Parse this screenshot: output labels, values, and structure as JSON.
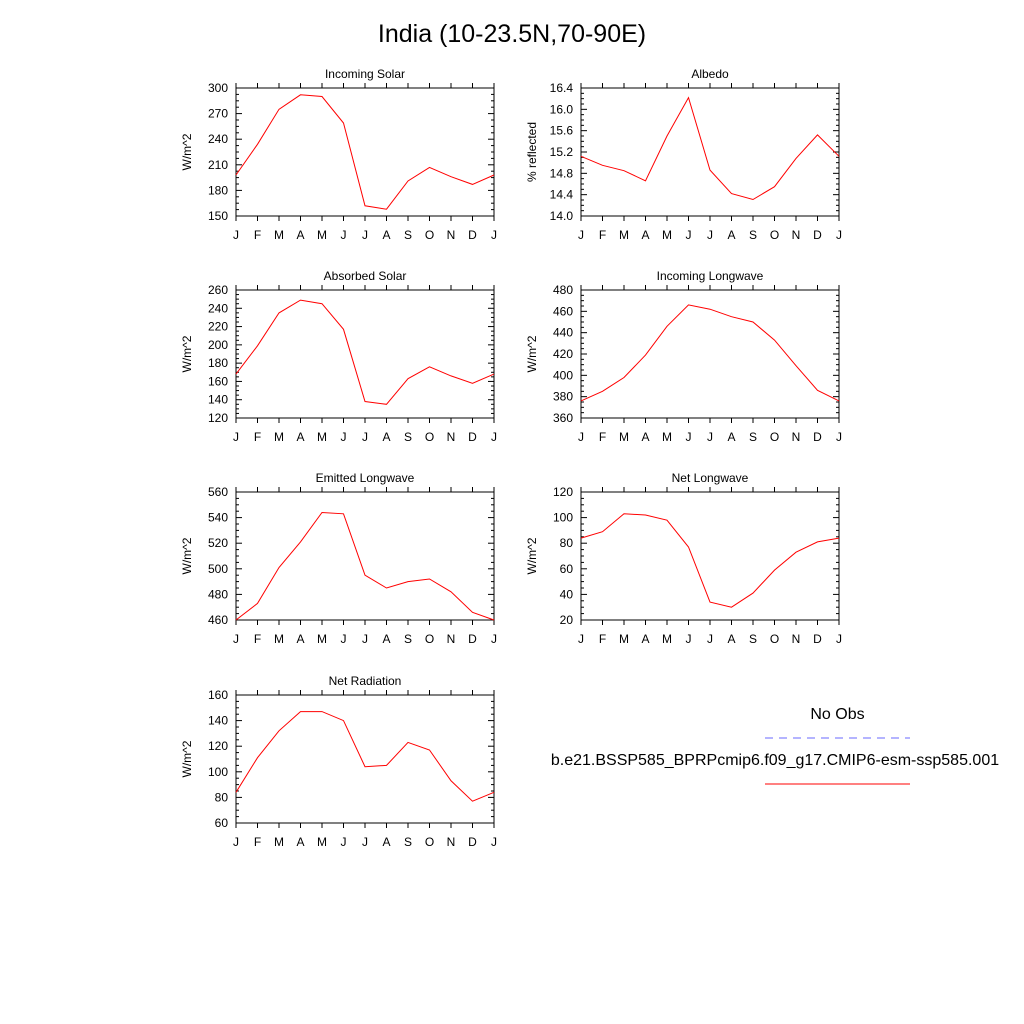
{
  "title": "India (10-23.5N,70-90E)",
  "legend": {
    "obs_label": "No Obs",
    "model_label": "b.e21.BSSP585_BPRPcmip6.f09_g17.CMIP6-esm-ssp585.001",
    "obs_color": "#6a6aff",
    "model_color": "#ff0000"
  },
  "chart_data": [
    {
      "type": "line",
      "title": "Incoming Solar",
      "ylabel": "W/m^2",
      "categories": [
        "J",
        "F",
        "M",
        "A",
        "M",
        "J",
        "J",
        "A",
        "S",
        "O",
        "N",
        "D",
        "J"
      ],
      "ylim": [
        150,
        300
      ],
      "yticks": [
        150,
        180,
        210,
        240,
        270,
        300
      ],
      "ytick_labels": [
        "150",
        "180",
        "210",
        "240",
        "270",
        "300"
      ],
      "series": [
        {
          "values": [
            198,
            234,
            275,
            292,
            290,
            259,
            162,
            158,
            191,
            207,
            196,
            187,
            198
          ],
          "color": "#ff0000"
        }
      ]
    },
    {
      "type": "line",
      "title": "Albedo",
      "ylabel": "% reflected",
      "categories": [
        "J",
        "F",
        "M",
        "A",
        "M",
        "J",
        "J",
        "A",
        "S",
        "O",
        "N",
        "D",
        "J"
      ],
      "ylim": [
        14.0,
        16.4
      ],
      "yticks": [
        14.0,
        14.4,
        14.8,
        15.2,
        15.6,
        16.0,
        16.4
      ],
      "ytick_labels": [
        "14.0",
        "14.4",
        "14.8",
        "15.2",
        "15.6",
        "16.0",
        "16.4"
      ],
      "series": [
        {
          "values": [
            15.12,
            14.95,
            14.85,
            14.66,
            15.5,
            16.22,
            14.86,
            14.42,
            14.31,
            14.55,
            15.08,
            15.52,
            15.12
          ],
          "color": "#ff0000"
        }
      ]
    },
    {
      "type": "line",
      "title": "Absorbed Solar",
      "ylabel": "W/m^2",
      "categories": [
        "J",
        "F",
        "M",
        "A",
        "M",
        "J",
        "J",
        "A",
        "S",
        "O",
        "N",
        "D",
        "J"
      ],
      "ylim": [
        120,
        260
      ],
      "yticks": [
        120,
        140,
        160,
        180,
        200,
        220,
        240,
        260
      ],
      "ytick_labels": [
        "120",
        "140",
        "160",
        "180",
        "200",
        "220",
        "240",
        "260"
      ],
      "series": [
        {
          "values": [
            168,
            199,
            235,
            249,
            245,
            217,
            138,
            135,
            163,
            176,
            166,
            158,
            168
          ],
          "color": "#ff0000"
        }
      ]
    },
    {
      "type": "line",
      "title": "Incoming Longwave",
      "ylabel": "W/m^2",
      "categories": [
        "J",
        "F",
        "M",
        "A",
        "M",
        "J",
        "J",
        "A",
        "S",
        "O",
        "N",
        "D",
        "J"
      ],
      "ylim": [
        360,
        480
      ],
      "yticks": [
        360,
        380,
        400,
        420,
        440,
        460,
        480
      ],
      "ytick_labels": [
        "360",
        "380",
        "400",
        "420",
        "440",
        "460",
        "480"
      ],
      "series": [
        {
          "values": [
            376,
            385,
            398,
            419,
            446,
            466,
            462,
            455,
            450,
            433,
            409,
            386,
            376
          ],
          "color": "#ff0000"
        }
      ]
    },
    {
      "type": "line",
      "title": "Emitted Longwave",
      "ylabel": "W/m^2",
      "categories": [
        "J",
        "F",
        "M",
        "A",
        "M",
        "J",
        "J",
        "A",
        "S",
        "O",
        "N",
        "D",
        "J"
      ],
      "ylim": [
        460,
        560
      ],
      "yticks": [
        460,
        480,
        500,
        520,
        540,
        560
      ],
      "ytick_labels": [
        "460",
        "480",
        "500",
        "520",
        "540",
        "560"
      ],
      "series": [
        {
          "values": [
            460,
            473,
            501,
            521,
            544,
            543,
            495,
            485,
            490,
            492,
            482,
            466,
            460
          ],
          "color": "#ff0000"
        }
      ]
    },
    {
      "type": "line",
      "title": "Net Longwave",
      "ylabel": "W/m^2",
      "categories": [
        "J",
        "F",
        "M",
        "A",
        "M",
        "J",
        "J",
        "A",
        "S",
        "O",
        "N",
        "D",
        "J"
      ],
      "ylim": [
        20,
        120
      ],
      "yticks": [
        20,
        40,
        60,
        80,
        100,
        120
      ],
      "ytick_labels": [
        "20",
        "40",
        "60",
        "80",
        "100",
        "120"
      ],
      "series": [
        {
          "values": [
            84,
            89,
            103,
            102,
            98,
            77,
            34,
            30,
            41,
            59,
            73,
            81,
            84
          ],
          "color": "#ff0000"
        }
      ]
    },
    {
      "type": "line",
      "title": "Net Radiation",
      "ylabel": "W/m^2",
      "categories": [
        "J",
        "F",
        "M",
        "A",
        "M",
        "J",
        "J",
        "A",
        "S",
        "O",
        "N",
        "D",
        "J"
      ],
      "ylim": [
        60,
        160
      ],
      "yticks": [
        60,
        80,
        100,
        120,
        140,
        160
      ],
      "ytick_labels": [
        "60",
        "80",
        "100",
        "120",
        "140",
        "160"
      ],
      "series": [
        {
          "values": [
            84,
            111,
            132,
            147,
            147,
            140,
            104,
            105,
            123,
            117,
            93,
            77,
            84
          ],
          "color": "#ff0000"
        }
      ]
    }
  ]
}
